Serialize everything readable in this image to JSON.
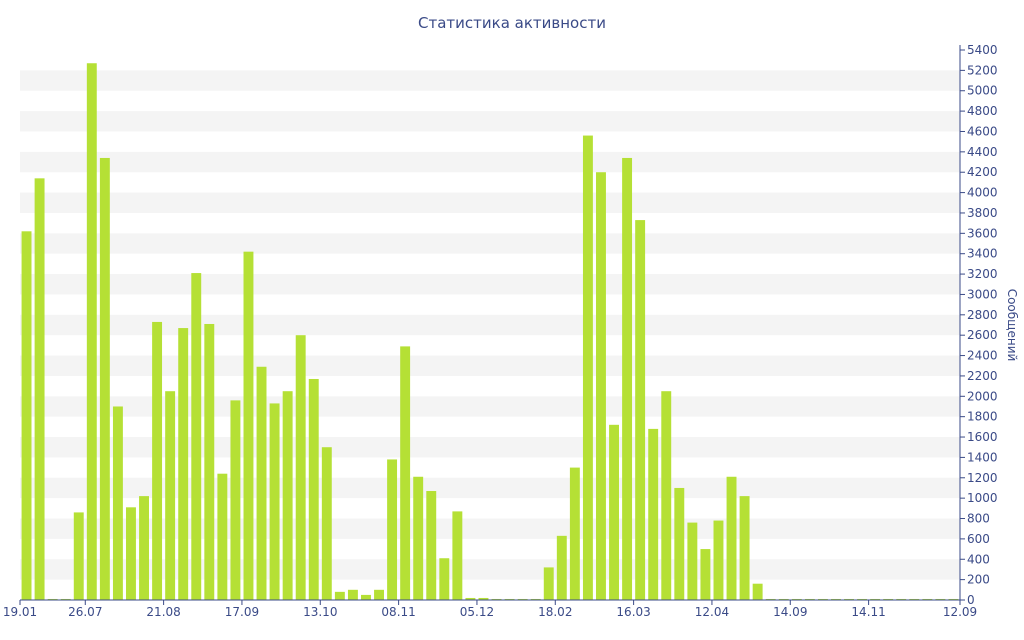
{
  "colors": {
    "bar": "#b5e035",
    "band": "#f4f4f4",
    "axis": "#3a4a87",
    "text": "#3a4a87"
  },
  "chart_data": {
    "type": "bar",
    "title": "Статистика активности",
    "xlabel": "",
    "ylabel": "Сообщений",
    "ylim": [
      0,
      5400
    ],
    "y_tick_step": 200,
    "y_axis_position": "right",
    "grid": "alternating horizontal bands",
    "categories": [
      "19.01",
      "",
      "",
      "",
      "",
      "26.07",
      "",
      "",
      "",
      "",
      "",
      "21.08",
      "",
      "",
      "",
      "",
      "",
      "17.09",
      "",
      "",
      "",
      "",
      "",
      "13.10",
      "",
      "",
      "",
      "",
      "",
      "08.11",
      "",
      "",
      "",
      "",
      "",
      "05.12",
      "",
      "",
      "",
      "",
      "",
      "18.02",
      "",
      "",
      "",
      "",
      "",
      "16.03",
      "",
      "",
      "",
      "",
      "",
      "12.04",
      "",
      "",
      "",
      "",
      "",
      "14.09",
      "",
      "",
      "",
      "",
      "",
      "14.11",
      "",
      "",
      "",
      "",
      "",
      "12.09"
    ],
    "x_tick_labels": [
      "19.01",
      "26.07",
      "21.08",
      "17.09",
      "13.10",
      "08.11",
      "05.12",
      "18.02",
      "16.03",
      "12.04",
      "14.09",
      "14.11",
      "12.09"
    ],
    "values": [
      3620,
      4140,
      10,
      10,
      860,
      5270,
      4340,
      1900,
      910,
      1020,
      2730,
      2050,
      2670,
      3210,
      2710,
      1240,
      1960,
      3420,
      2290,
      1930,
      2050,
      2600,
      2170,
      1500,
      80,
      100,
      50,
      100,
      1380,
      2490,
      1210,
      1070,
      410,
      870,
      20,
      20,
      10,
      10,
      10,
      10,
      320,
      630,
      1300,
      4560,
      4200,
      1720,
      4340,
      3730,
      1680,
      2050,
      1100,
      760,
      500,
      780,
      1210,
      1020,
      160,
      10,
      10,
      10,
      10,
      10,
      10,
      10,
      10,
      10,
      10,
      10,
      10,
      10,
      10,
      10
    ]
  }
}
